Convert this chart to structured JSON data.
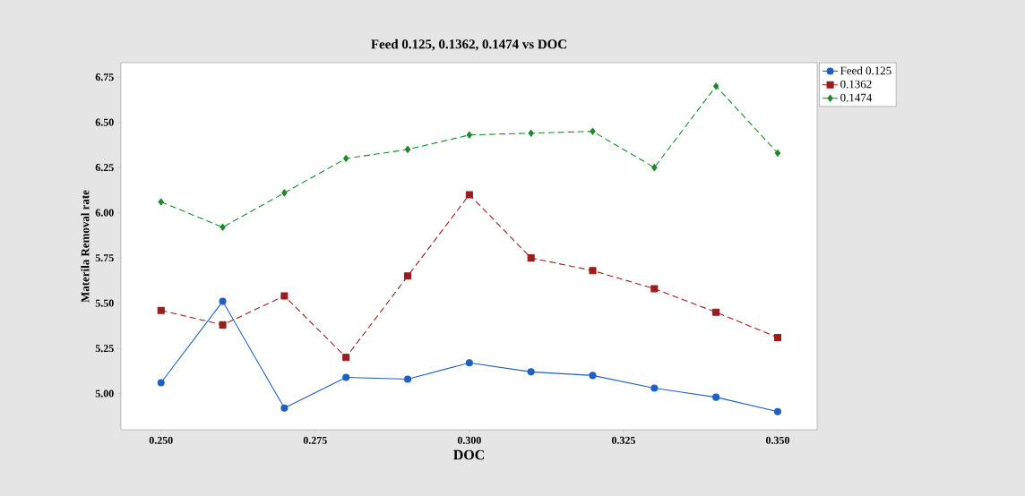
{
  "chart_data": {
    "type": "line",
    "title": "Feed 0.125, 0.1362, 0.1474 vs DOC",
    "xlabel": "DOC",
    "ylabel": "Materila Removal rate",
    "x": [
      0.25,
      0.26,
      0.27,
      0.28,
      0.29,
      0.3,
      0.31,
      0.32,
      0.33,
      0.34,
      0.35
    ],
    "series": [
      {
        "name": "Feed 0.125",
        "color": "#1f5fbf",
        "marker": "circle",
        "line_style": "solid",
        "values": [
          5.06,
          5.51,
          4.92,
          5.09,
          5.08,
          5.17,
          5.12,
          5.1,
          5.03,
          4.98,
          4.9
        ]
      },
      {
        "name": "0.1362",
        "color": "#9b1c1c",
        "marker": "square",
        "line_style": "dashed",
        "values": [
          5.46,
          5.38,
          5.54,
          5.2,
          5.65,
          6.1,
          5.75,
          5.68,
          5.58,
          5.45,
          5.31
        ]
      },
      {
        "name": "0.1474",
        "color": "#1a8a2a",
        "marker": "diamond",
        "line_style": "dashed",
        "values": [
          6.06,
          5.92,
          6.11,
          6.3,
          6.35,
          6.43,
          6.44,
          6.45,
          6.25,
          6.7,
          6.33
        ]
      }
    ],
    "xlim": [
      0.2435,
      0.3564
    ],
    "ylim": [
      4.8,
      6.83
    ],
    "xticks": [
      {
        "value": 0.25,
        "label": "0.250"
      },
      {
        "value": 0.275,
        "label": "0.275"
      },
      {
        "value": 0.3,
        "label": "0.300"
      },
      {
        "value": 0.325,
        "label": "0.325"
      },
      {
        "value": 0.35,
        "label": "0.350"
      }
    ],
    "yticks": [
      {
        "value": 5.0,
        "label": "5.00"
      },
      {
        "value": 5.25,
        "label": "5.25"
      },
      {
        "value": 5.5,
        "label": "5.50"
      },
      {
        "value": 5.75,
        "label": "5.75"
      },
      {
        "value": 6.0,
        "label": "6.00"
      },
      {
        "value": 6.25,
        "label": "6.25"
      },
      {
        "value": 6.5,
        "label": "6.50"
      },
      {
        "value": 6.75,
        "label": "6.75"
      }
    ],
    "grid": false,
    "legend": "right"
  }
}
